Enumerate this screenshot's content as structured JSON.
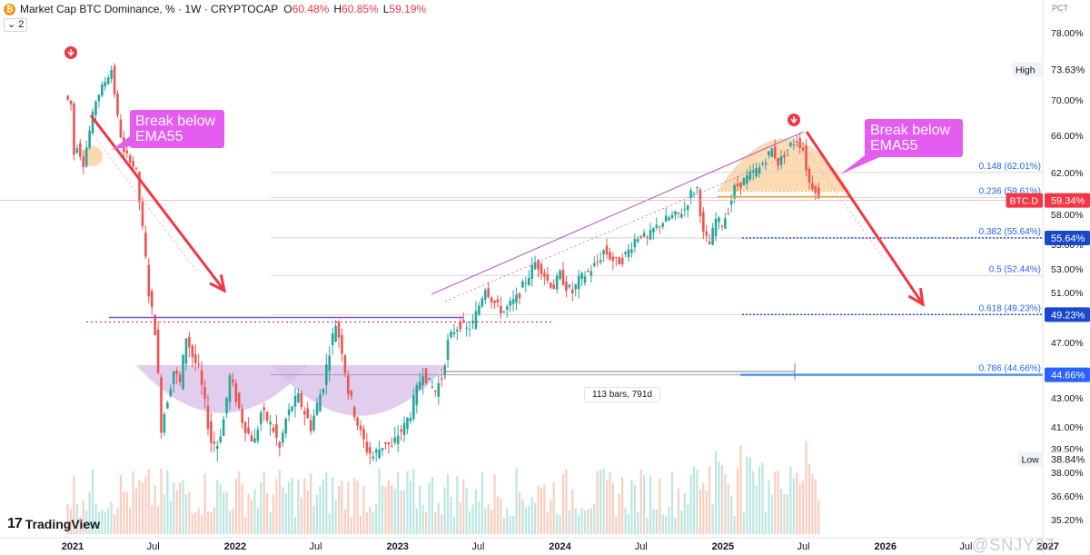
{
  "header": {
    "title": "Market Cap BTC Dominance, % · 1W · CRYPTOCAP",
    "open_key": "O",
    "open_value": "60.48%",
    "high_key": "H",
    "high_value": "60.85%",
    "low_key": "L",
    "low_value": "59.19%",
    "indicator_count": "2",
    "logo_glyph": "₿"
  },
  "axis_unit": "PCT",
  "callouts": {
    "left": "Break below EMA55",
    "right": "Break below EMA55"
  },
  "measure_label": "113 bars, 791d",
  "branding": {
    "logo_mark": "17",
    "logo_text": "TradingView",
    "watermark": "@SNJY27"
  },
  "colors": {
    "up": "#26a69a",
    "down": "#ef5350",
    "callout": "#e45cf0",
    "fib_line": "#b2b5be",
    "fib_text": "#2962ff",
    "level_blue": "#1848cc",
    "price_red": "#f23645",
    "cup_fill": "#d7bde8",
    "top_fill": "#fbcf9b"
  },
  "chart_data": {
    "type": "candlestick",
    "timeframe": "1W",
    "ylabel": "PCT",
    "ylim": [
      35.2,
      80.0
    ],
    "y_ticks": [
      "78.00%",
      "70.00%",
      "66.00%",
      "62.00%",
      "58.00%",
      "55.00%",
      "53.00%",
      "51.00%",
      "47.00%",
      "43.00%",
      "41.00%",
      "39.50%",
      "38.00%",
      "36.60%",
      "35.20%"
    ],
    "x_ticks": [
      "2021",
      "Jul",
      "2022",
      "Jul",
      "2023",
      "Jul",
      "2024",
      "Jul",
      "2025",
      "Jul",
      "2026",
      "Jul",
      "2027"
    ],
    "price_labels": [
      {
        "label": "High",
        "value": "73.63%"
      },
      {
        "label": "BTC.D",
        "value": "59.34%"
      },
      {
        "label": "",
        "value": "55.64%"
      },
      {
        "label": "",
        "value": "49.23%"
      },
      {
        "label": "",
        "value": "44.66%"
      },
      {
        "label": "Low",
        "value": "38.84%"
      }
    ],
    "fib_levels": [
      {
        "ratio": "0.148",
        "value": 62.01,
        "label": "0.148 (62.01%)"
      },
      {
        "ratio": "0.236",
        "value": 59.61,
        "label": "0.236 (59.61%)"
      },
      {
        "ratio": "0.382",
        "value": 55.64,
        "label": "0.382 (55.64%)"
      },
      {
        "ratio": "0.5",
        "value": 52.44,
        "label": "0.5 (52.44%)"
      },
      {
        "ratio": "0.618",
        "value": 49.23,
        "label": "0.618 (49.23%)"
      },
      {
        "ratio": "0.786",
        "value": 44.66,
        "label": "0.786 (44.66%)"
      }
    ],
    "current_value": 59.34,
    "high_value": 73.63,
    "low_value": 38.84,
    "neckline": 49.0,
    "candle_path": [
      {
        "date": "2020-12-21",
        "value": 70.5
      },
      {
        "date": "2021-01-04",
        "value": 69.5
      },
      {
        "date": "2021-01-11",
        "value": 64.0
      },
      {
        "date": "2021-01-18",
        "value": 65.0
      },
      {
        "date": "2021-02-01",
        "value": 63.0
      },
      {
        "date": "2021-02-15",
        "value": 66.5
      },
      {
        "date": "2021-03-01",
        "value": 70.0
      },
      {
        "date": "2021-03-15",
        "value": 71.5
      },
      {
        "date": "2021-04-05",
        "value": 73.63
      },
      {
        "date": "2021-04-19",
        "value": 68.0
      },
      {
        "date": "2021-05-03",
        "value": 64.0
      },
      {
        "date": "2021-05-17",
        "value": 63.5
      },
      {
        "date": "2021-05-31",
        "value": 62.0
      },
      {
        "date": "2021-06-14",
        "value": 56.5
      },
      {
        "date": "2021-06-28",
        "value": 51.0
      },
      {
        "date": "2021-07-12",
        "value": 48.0
      },
      {
        "date": "2021-07-26",
        "value": 41.0
      },
      {
        "date": "2021-08-09",
        "value": 43.0
      },
      {
        "date": "2021-08-23",
        "value": 45.0
      },
      {
        "date": "2021-09-06",
        "value": 44.0
      },
      {
        "date": "2021-09-20",
        "value": 47.5
      },
      {
        "date": "2021-10-04",
        "value": 46.0
      },
      {
        "date": "2021-10-18",
        "value": 45.0
      },
      {
        "date": "2021-11-01",
        "value": 42.5
      },
      {
        "date": "2021-11-15",
        "value": 40.0
      },
      {
        "date": "2021-11-29",
        "value": 39.8
      },
      {
        "date": "2021-12-13",
        "value": 41.5
      },
      {
        "date": "2021-12-27",
        "value": 44.5
      },
      {
        "date": "2022-01-10",
        "value": 43.0
      },
      {
        "date": "2022-01-24",
        "value": 41.5
      },
      {
        "date": "2022-02-07",
        "value": 40.5
      },
      {
        "date": "2022-02-21",
        "value": 40.0
      },
      {
        "date": "2022-03-07",
        "value": 42.0
      },
      {
        "date": "2022-03-21",
        "value": 41.5
      },
      {
        "date": "2022-04-04",
        "value": 40.8
      },
      {
        "date": "2022-04-18",
        "value": 39.5
      },
      {
        "date": "2022-05-02",
        "value": 41.5
      },
      {
        "date": "2022-05-16",
        "value": 42.5
      },
      {
        "date": "2022-05-30",
        "value": 43.0
      },
      {
        "date": "2022-06-13",
        "value": 42.0
      },
      {
        "date": "2022-06-27",
        "value": 41.0
      },
      {
        "date": "2022-07-11",
        "value": 42.5
      },
      {
        "date": "2022-07-25",
        "value": 44.0
      },
      {
        "date": "2022-08-08",
        "value": 46.5
      },
      {
        "date": "2022-08-22",
        "value": 48.5
      },
      {
        "date": "2022-09-05",
        "value": 46.5
      },
      {
        "date": "2022-09-19",
        "value": 43.5
      },
      {
        "date": "2022-10-03",
        "value": 42.0
      },
      {
        "date": "2022-10-17",
        "value": 40.5
      },
      {
        "date": "2022-10-31",
        "value": 39.5
      },
      {
        "date": "2022-11-14",
        "value": 39.0
      },
      {
        "date": "2022-11-28",
        "value": 39.5
      },
      {
        "date": "2022-12-12",
        "value": 40.0
      },
      {
        "date": "2022-12-26",
        "value": 39.5
      },
      {
        "date": "2023-01-09",
        "value": 40.5
      },
      {
        "date": "2023-01-23",
        "value": 41.0
      },
      {
        "date": "2023-02-06",
        "value": 42.0
      },
      {
        "date": "2023-02-20",
        "value": 43.5
      },
      {
        "date": "2023-03-06",
        "value": 45.0
      },
      {
        "date": "2023-03-20",
        "value": 44.0
      },
      {
        "date": "2023-04-03",
        "value": 43.5
      },
      {
        "date": "2023-04-17",
        "value": 44.5
      },
      {
        "date": "2023-05-01",
        "value": 47.0
      },
      {
        "date": "2023-05-15",
        "value": 48.0
      },
      {
        "date": "2023-05-29",
        "value": 48.5
      },
      {
        "date": "2023-06-12",
        "value": 48.0
      },
      {
        "date": "2023-06-26",
        "value": 48.5
      },
      {
        "date": "2023-07-10",
        "value": 50.0
      },
      {
        "date": "2023-07-24",
        "value": 51.5
      },
      {
        "date": "2023-08-07",
        "value": 50.5
      },
      {
        "date": "2023-08-21",
        "value": 49.8
      },
      {
        "date": "2023-09-04",
        "value": 49.5
      },
      {
        "date": "2023-09-18",
        "value": 50.0
      },
      {
        "date": "2023-10-02",
        "value": 50.5
      },
      {
        "date": "2023-10-16",
        "value": 51.5
      },
      {
        "date": "2023-10-30",
        "value": 52.5
      },
      {
        "date": "2023-11-13",
        "value": 53.5
      },
      {
        "date": "2023-11-27",
        "value": 53.0
      },
      {
        "date": "2023-12-11",
        "value": 52.0
      },
      {
        "date": "2023-12-25",
        "value": 51.5
      },
      {
        "date": "2024-01-08",
        "value": 52.5
      },
      {
        "date": "2024-01-22",
        "value": 51.5
      },
      {
        "date": "2024-02-05",
        "value": 51.0
      },
      {
        "date": "2024-02-19",
        "value": 52.0
      },
      {
        "date": "2024-03-04",
        "value": 52.5
      },
      {
        "date": "2024-03-18",
        "value": 53.0
      },
      {
        "date": "2024-04-01",
        "value": 53.5
      },
      {
        "date": "2024-04-15",
        "value": 54.5
      },
      {
        "date": "2024-04-29",
        "value": 54.0
      },
      {
        "date": "2024-05-13",
        "value": 53.5
      },
      {
        "date": "2024-05-27",
        "value": 53.8
      },
      {
        "date": "2024-06-10",
        "value": 54.5
      },
      {
        "date": "2024-06-24",
        "value": 55.5
      },
      {
        "date": "2024-07-08",
        "value": 56.0
      },
      {
        "date": "2024-07-22",
        "value": 55.5
      },
      {
        "date": "2024-08-05",
        "value": 56.5
      },
      {
        "date": "2024-08-19",
        "value": 57.0
      },
      {
        "date": "2024-09-02",
        "value": 57.5
      },
      {
        "date": "2024-09-16",
        "value": 57.8
      },
      {
        "date": "2024-09-30",
        "value": 58.0
      },
      {
        "date": "2024-10-14",
        "value": 58.5
      },
      {
        "date": "2024-10-28",
        "value": 60.0
      },
      {
        "date": "2024-11-11",
        "value": 60.5
      },
      {
        "date": "2024-11-25",
        "value": 56.0
      },
      {
        "date": "2024-12-09",
        "value": 55.0
      },
      {
        "date": "2024-12-23",
        "value": 57.5
      },
      {
        "date": "2025-01-06",
        "value": 57.0
      },
      {
        "date": "2025-01-20",
        "value": 58.5
      },
      {
        "date": "2025-02-03",
        "value": 60.5
      },
      {
        "date": "2025-02-17",
        "value": 61.0
      },
      {
        "date": "2025-03-03",
        "value": 61.5
      },
      {
        "date": "2025-03-17",
        "value": 62.0
      },
      {
        "date": "2025-03-31",
        "value": 62.5
      },
      {
        "date": "2025-04-14",
        "value": 63.5
      },
      {
        "date": "2025-04-28",
        "value": 64.5
      },
      {
        "date": "2025-05-12",
        "value": 63.0
      },
      {
        "date": "2025-05-26",
        "value": 64.0
      },
      {
        "date": "2025-06-09",
        "value": 65.0
      },
      {
        "date": "2025-06-23",
        "value": 65.5
      },
      {
        "date": "2025-07-07",
        "value": 64.5
      },
      {
        "date": "2025-07-14",
        "value": 62.5
      },
      {
        "date": "2025-07-21",
        "value": 61.0
      },
      {
        "date": "2025-08-04",
        "value": 60.48
      },
      {
        "date": "2025-08-11",
        "value": 59.34
      }
    ]
  }
}
